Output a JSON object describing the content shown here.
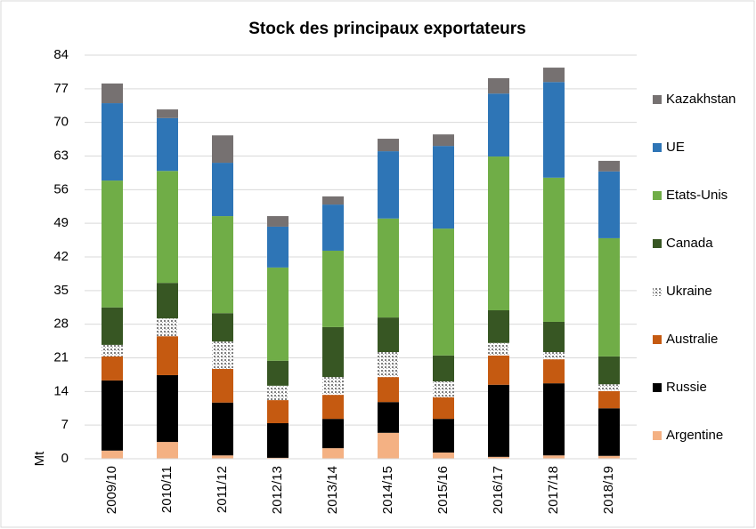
{
  "chart_data": {
    "type": "stacked_bar",
    "title": "Stock des principaux exportateurs",
    "y_label": "Mt",
    "categories": [
      "2009/10",
      "2010/11",
      "2011/12",
      "2012/13",
      "2013/14",
      "2014/15",
      "2015/16",
      "2016/17",
      "2017/18",
      "2018/19"
    ],
    "series": [
      {
        "name": "Argentine",
        "color": "#f4b183",
        "values": [
          1.7,
          3.5,
          0.7,
          0.2,
          2.2,
          5.4,
          1.3,
          0.4,
          0.7,
          0.6
        ]
      },
      {
        "name": "Russie",
        "color": "#000000",
        "values": [
          14.6,
          13.9,
          11.0,
          7.2,
          6.1,
          6.4,
          7.0,
          15.0,
          15.0,
          9.9
        ]
      },
      {
        "name": "Australie",
        "color": "#c55a11",
        "values": [
          5.0,
          8.1,
          7.0,
          4.8,
          5.0,
          5.2,
          4.5,
          6.1,
          5.0,
          3.6
        ]
      },
      {
        "name": "Ukraine",
        "color": "#bfbfbf",
        "pattern": "dots",
        "values": [
          2.4,
          3.7,
          5.7,
          3.0,
          3.7,
          5.2,
          3.3,
          2.6,
          1.5,
          1.4
        ]
      },
      {
        "name": "Canada",
        "color": "#375623",
        "values": [
          7.8,
          7.4,
          5.9,
          5.2,
          10.4,
          7.2,
          5.4,
          6.8,
          6.3,
          5.8
        ]
      },
      {
        "name": "Etats-Unis",
        "color": "#70ad47",
        "values": [
          26.4,
          23.3,
          20.2,
          19.4,
          15.9,
          20.6,
          26.4,
          32.0,
          30.0,
          24.6
        ]
      },
      {
        "name": "UE",
        "color": "#2e75b6",
        "values": [
          16.1,
          11.0,
          11.1,
          8.5,
          9.6,
          14.0,
          17.2,
          13.1,
          19.9,
          13.9
        ]
      },
      {
        "name": "Kazakhstan",
        "color": "#767171",
        "values": [
          4.1,
          1.8,
          5.7,
          2.2,
          1.7,
          2.6,
          2.4,
          3.2,
          3.0,
          2.2
        ]
      }
    ],
    "ylim": [
      0,
      84
    ],
    "yticks": [
      0,
      7,
      14,
      21,
      28,
      35,
      42,
      49,
      56,
      63,
      70,
      77,
      84
    ],
    "grid": true,
    "legend": "right"
  }
}
